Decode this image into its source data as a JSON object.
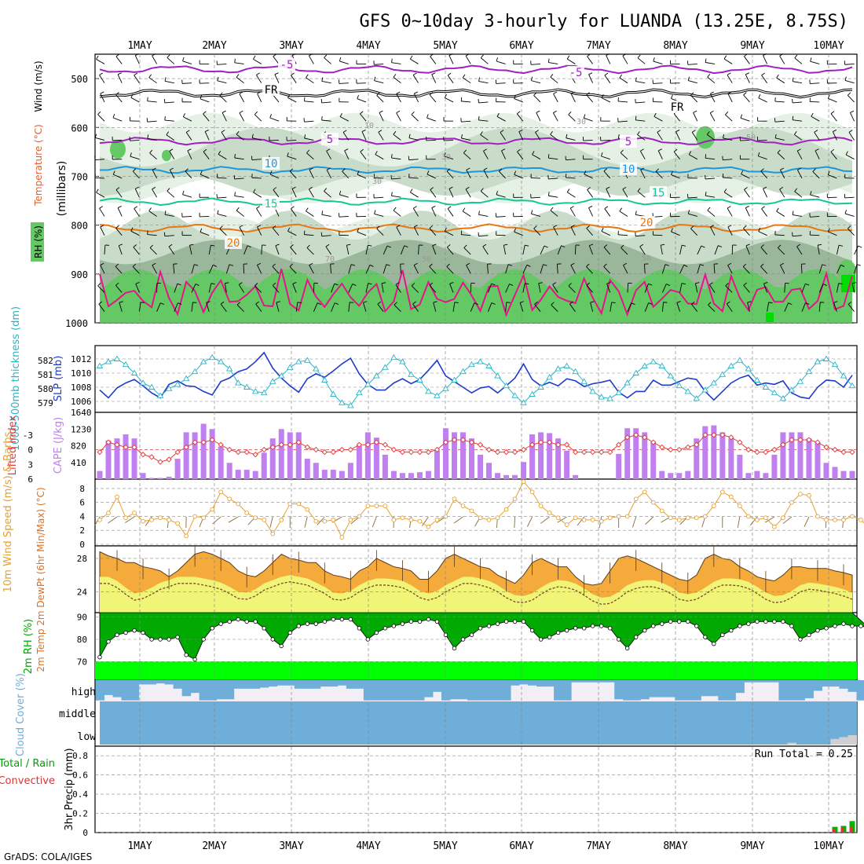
{
  "title": "GFS 0~10day 3-hourly for LUANDA (13.25E, 8.75S)",
  "footer": "GrADS: COLA/IGES",
  "days": [
    "1MAY",
    "2MAY",
    "3MAY",
    "4MAY",
    "5MAY",
    "6MAY",
    "7MAY",
    "8MAY",
    "9MAY",
    "10MAY"
  ],
  "colors": {
    "rh_light": "#e6f1e6",
    "rh_mid": "#c9dcc9",
    "rh_dark": "#9bb79b",
    "rh_green": "#64c864",
    "rh_bright": "#00dc00",
    "t_neg5": "#a020c0",
    "t_fr": "#000000",
    "t_10": "#1e96dc",
    "t_15": "#14c896",
    "t_20": "#e67814",
    "t_25": "#e6148c",
    "slp": "#1e3cc8",
    "thick": "#2ab4c8",
    "cape": "#c080f0",
    "li": "#e03c3c",
    "wind": "#e6a032",
    "temp_fill": "#f5aa3c",
    "dew_fill": "#f0f578",
    "rh2m_dark": "#00aa00",
    "rh2m_bright": "#00ff00",
    "cloud": "#6eaed8",
    "cloud_gap": "#f2eef6",
    "precip_total": "#00b400",
    "precip_conv": "#e63232"
  },
  "chart_data": [
    {
      "panel": "upper-air",
      "type": "contour",
      "ylabel": "(millibars)",
      "yticks": [
        500,
        600,
        700,
        800,
        900,
        1000
      ],
      "ylim": [
        450,
        1000
      ],
      "legend": [
        "RH (%)",
        "Temperature (°C)",
        "Wind (m/s)"
      ],
      "isotherm_labels": [
        "-5",
        "FR",
        "5",
        "10",
        "15",
        "20"
      ],
      "rh_contour_labels": [
        "10",
        "30",
        "50",
        "70"
      ],
      "isotherms": [
        {
          "label": "-5",
          "color_key": "t_neg5",
          "base": 481,
          "amp": 6
        },
        {
          "label": "FR",
          "color_key": "t_fr",
          "base": 530,
          "amp": 6
        },
        {
          "label": "5",
          "color_key": "t_neg5",
          "base": 628,
          "amp": 6
        },
        {
          "label": "10",
          "color_key": "t_10",
          "base": 687,
          "amp": 5
        },
        {
          "label": "15",
          "color_key": "t_15",
          "base": 752,
          "amp": 5
        },
        {
          "label": "20",
          "color_key": "t_20",
          "base": 806,
          "amp": 6
        }
      ]
    },
    {
      "panel": "slp-thickness",
      "type": "line",
      "ylabel_left": "1000-500mb thickness (dm)",
      "ylabel_right": "SLP (mb)",
      "slp_ticks": [
        "1012",
        "1010",
        "1008",
        "1006"
      ],
      "thick_ticks": [
        "582",
        "581",
        "580",
        "579"
      ],
      "slp_range": [
        1005,
        1013
      ],
      "slp": [
        1007.6,
        1006.5,
        1007.9,
        1008.6,
        1009.1,
        1008.2,
        1007.2,
        1006.5,
        1008.4,
        1008.9,
        1008.2,
        1008.1,
        1007.4,
        1006.9,
        1008.8,
        1009.3,
        1010.2,
        1010.6,
        1011.6,
        1012.9,
        1010.7,
        1009.3,
        1008.2,
        1007.3,
        1009.2,
        1009.9,
        1009.4,
        1010.3,
        1011.3,
        1012.1,
        1009.9,
        1008.4,
        1007.6,
        1007.6,
        1008.6,
        1009.2,
        1008.5,
        1009.1,
        1010.4,
        1011.8,
        1009.6,
        1008.8,
        1008.0,
        1007.2,
        1007.9,
        1008.1,
        1007.2,
        1008.2,
        1009.3,
        1011.3,
        1009.1,
        1008.2,
        1008.7,
        1008.2,
        1009.2,
        1008.9,
        1008.1,
        1008.5,
        1008.7,
        1009.0,
        1007.3,
        1006.5,
        1007.4,
        1007.4,
        1009.0,
        1008.3,
        1008.3,
        1008.8,
        1009.3,
        1009.1,
        1007.4,
        1006.2,
        1007.4,
        1008.6,
        1009.3,
        1009.7,
        1008.3,
        1008.6,
        1008.4,
        1008.9,
        1007.2,
        1006.6,
        1006.4,
        1008.0,
        1009.0,
        1008.9,
        1008.0,
        1009.7
      ],
      "thickness": [
        581.6,
        581.9,
        582.1,
        581.7,
        581.1,
        580.4,
        580.1,
        579.5,
        580.0,
        580.3,
        580.7,
        581.2,
        581.9,
        582.2,
        581.9,
        581.4,
        580.4,
        580.1,
        579.8,
        579.7,
        580.5,
        580.9,
        581.5,
        581.9,
        582.0,
        581.4,
        580.6,
        579.6,
        579.0,
        578.8,
        579.7,
        580.3,
        580.9,
        581.5,
        582.2,
        581.9,
        581.0,
        580.6,
        579.8,
        579.5,
        580.0,
        580.6,
        581.2,
        581.7,
        581.9,
        581.6,
        580.9,
        580.2,
        579.5,
        579.0,
        579.6,
        580.1,
        580.8,
        581.4,
        581.6,
        581.2,
        580.5,
        579.8,
        579.4,
        579.3,
        579.7,
        580.4,
        581.1,
        581.6,
        581.9,
        581.6,
        580.9,
        580.2,
        579.8,
        579.3,
        579.9,
        580.4,
        581.0,
        581.6,
        582.0,
        581.4,
        580.6,
        580.1,
        579.7,
        579.3,
        579.9,
        580.5,
        581.2,
        581.9,
        582.1,
        581.7,
        580.9,
        580.2
      ]
    },
    {
      "panel": "cape-li",
      "type": "bar+line",
      "ylabel_left": "Lifted Index",
      "ylabel_right": "CAPE (J/kg)",
      "cape_ticks": [
        "1640",
        "1230",
        "820",
        "410"
      ],
      "li_ticks": [
        "-3",
        "0",
        "3",
        "6"
      ],
      "cape_max": 1640,
      "li_range": [
        -6,
        6
      ],
      "cape": [
        200,
        950,
        1000,
        1100,
        1000,
        150,
        30,
        30,
        60,
        500,
        1150,
        1150,
        1360,
        1230,
        800,
        400,
        230,
        230,
        200,
        650,
        1000,
        1230,
        1150,
        1150,
        500,
        400,
        230,
        230,
        200,
        400,
        820,
        1150,
        1020,
        600,
        200,
        150,
        150,
        170,
        200,
        700,
        1250,
        1150,
        1150,
        1000,
        600,
        400,
        150,
        100,
        100,
        420,
        1100,
        1150,
        1130,
        1000,
        700,
        100,
        0,
        0,
        0,
        0,
        620,
        1250,
        1250,
        1150,
        900,
        200,
        150,
        150,
        200,
        1000,
        1300,
        1320,
        1150,
        1000,
        600,
        150,
        200,
        150,
        600,
        1150,
        1150,
        1150,
        1000,
        900,
        400,
        300,
        200,
        200
      ],
      "lifted_index": [
        0.5,
        -1.5,
        -1,
        -0.5,
        -0.5,
        1,
        1.5,
        2.5,
        2,
        0.5,
        -0.5,
        -1.5,
        -1.5,
        -2,
        -1,
        0,
        0.5,
        0.5,
        1,
        0,
        -0.5,
        -1,
        -1,
        -1.5,
        -0.5,
        0,
        0.5,
        0.5,
        0,
        0,
        -1,
        -1,
        -1.5,
        -1,
        0,
        0.5,
        0.5,
        0.5,
        0.5,
        0,
        -1.5,
        -2,
        -2,
        -1.5,
        -1,
        0,
        0.5,
        0.5,
        0.5,
        0,
        -1,
        -1.5,
        -1.5,
        -1,
        -1,
        0.5,
        0.5,
        0.5,
        0.5,
        0.5,
        -1,
        -2.5,
        -3,
        -2.5,
        -1.5,
        -0.5,
        0,
        0,
        -0.5,
        -1,
        -3,
        -3,
        -3,
        -2.5,
        -1.5,
        0,
        0.5,
        0.5,
        0,
        -1,
        -2,
        -2,
        -2,
        -1.5,
        -0.5,
        0,
        0.5,
        0.5
      ]
    },
    {
      "panel": "wind10m",
      "type": "line",
      "ylabel": "10m Wind Speed (m/s) & Barbs",
      "yticks": [
        "8",
        "6",
        "4",
        "2",
        "0"
      ],
      "ylim": [
        0,
        9
      ],
      "speed": [
        3.5,
        4.5,
        6.8,
        3.8,
        4.5,
        3.3,
        3.5,
        3.8,
        3.5,
        3.0,
        1.2,
        4.0,
        3.8,
        5.0,
        7.5,
        6.5,
        5.8,
        4.5,
        3.8,
        3.5,
        1.5,
        3.5,
        5.8,
        5.8,
        5.0,
        3.3,
        3.3,
        3.5,
        1.0,
        3.5,
        4.0,
        5.5,
        5.5,
        5.5,
        3.5,
        3.8,
        3.5,
        3.3,
        2.5,
        3.5,
        4.0,
        6.5,
        5.5,
        4.8,
        3.8,
        3.5,
        3.8,
        5.0,
        6.5,
        9.0,
        7.5,
        5.5,
        4.5,
        3.8,
        2.8,
        3.8,
        3.5,
        3.5,
        3.3,
        3.8,
        4.0,
        4.0,
        6.5,
        7.5,
        6.0,
        4.8,
        3.8,
        3.5,
        3.8,
        3.8,
        4.0,
        5.5,
        7.5,
        6.8,
        5.5,
        4.0,
        3.5,
        3.8,
        2.5,
        3.8,
        6.0,
        7.2,
        7.0,
        4.0,
        3.5,
        3.5,
        3.5,
        4.0,
        3.5,
        2.3,
        2.5,
        2.0
      ]
    },
    {
      "panel": "temp-dewpt",
      "type": "area",
      "ylabel": "2m Temp 2m DewPt (6hr Min/Max) (°C)",
      "yticks": [
        "28",
        "24"
      ],
      "ylim": [
        21.5,
        29.5
      ],
      "temp": [
        28.8,
        28.3,
        28.0,
        27.5,
        27.5,
        27.0,
        26.8,
        26.5,
        25.8,
        26.5,
        27.5,
        28.5,
        28.8,
        28.5,
        28.0,
        27.5,
        26.5,
        26.0,
        25.8,
        26.5,
        27.5,
        28.5,
        28.0,
        27.8,
        27.5,
        27.5,
        26.5,
        26.0,
        25.8,
        25.5,
        26.5,
        27.0,
        28.0,
        27.5,
        27.0,
        26.8,
        26.5,
        25.5,
        25.5,
        26.5,
        28.0,
        28.5,
        28.0,
        27.5,
        27.0,
        26.8,
        26.0,
        25.5,
        25.0,
        26.0,
        27.5,
        28.0,
        27.5,
        27.0,
        27.0,
        25.8,
        25.0,
        24.8,
        25.0,
        26.5,
        28.0,
        28.3,
        28.0,
        27.5,
        27.0,
        26.5,
        26.0,
        25.5,
        25.3,
        26.0,
        28.0,
        28.5,
        28.0,
        27.8,
        27.0,
        26.5,
        25.8,
        25.5,
        25.3,
        26.0,
        27.0,
        27.0,
        26.8,
        26.8,
        26.8,
        26.5,
        26.3,
        26.0
      ],
      "dewpoint": [
        25.0,
        25.0,
        24.5,
        23.7,
        23.0,
        23.2,
        23.7,
        24.3,
        24.6,
        25.0,
        25.0,
        25.0,
        24.8,
        24.6,
        24.3,
        23.8,
        23.2,
        23.1,
        23.5,
        24.2,
        24.6,
        25.0,
        25.2,
        25.0,
        24.8,
        24.3,
        23.8,
        23.1,
        23.0,
        23.3,
        24.0,
        24.5,
        24.8,
        24.8,
        24.7,
        24.5,
        24.0,
        23.3,
        23.0,
        23.3,
        24.0,
        24.5,
        25.0,
        25.0,
        24.8,
        24.5,
        24.0,
        23.3,
        22.8,
        22.7,
        23.0,
        23.7,
        24.3,
        24.6,
        24.5,
        24.2,
        23.6,
        22.9,
        22.5,
        22.6,
        23.2,
        24.0,
        24.4,
        24.6,
        24.6,
        24.3,
        23.8,
        23.1,
        22.9,
        23.1,
        23.7,
        24.4,
        24.8,
        24.8,
        24.7,
        24.4,
        23.8,
        23.1,
        22.7,
        22.8,
        23.3,
        24.0,
        24.3,
        24.2,
        24.0,
        23.8,
        23.5,
        23.1
      ]
    },
    {
      "panel": "rh2m",
      "type": "area",
      "ylabel": "2m RH (%)",
      "yticks": [
        "90",
        "80",
        "70"
      ],
      "ylim": [
        62,
        92
      ],
      "rh": [
        72,
        79,
        82,
        83,
        84,
        83,
        80,
        80,
        80,
        81,
        73,
        71,
        80,
        85,
        87,
        88,
        89,
        88,
        88,
        85,
        80,
        77,
        83,
        86,
        87,
        87,
        88,
        89,
        89,
        89,
        85,
        80,
        83,
        85,
        86,
        87,
        88,
        88,
        89,
        88,
        82,
        76,
        80,
        82,
        85,
        86,
        87,
        88,
        88,
        88,
        84,
        80,
        81,
        83,
        84,
        85,
        85,
        86,
        86,
        85,
        80,
        76,
        81,
        84,
        86,
        87,
        88,
        88,
        88,
        86,
        81,
        78,
        82,
        84,
        86,
        87,
        88,
        88,
        88,
        88,
        86,
        80,
        82,
        84,
        85,
        86,
        87,
        86,
        86,
        85
      ]
    },
    {
      "panel": "cloud-cover",
      "type": "area",
      "ylabel": "Cloud Cover (%)",
      "rows": [
        "high",
        "middle",
        "low"
      ],
      "high": [
        95,
        70,
        80,
        95,
        95,
        20,
        20,
        15,
        20,
        40,
        75,
        60,
        95,
        95,
        90,
        90,
        40,
        40,
        40,
        35,
        30,
        25,
        25,
        40,
        40,
        40,
        30,
        30,
        25,
        40,
        40,
        95,
        95,
        95,
        95,
        95,
        95,
        95,
        80,
        55,
        95,
        90,
        90,
        95,
        95,
        95,
        95,
        95,
        25,
        20,
        25,
        30,
        30,
        95,
        95,
        10,
        10,
        10,
        10,
        10,
        90,
        95,
        95,
        90,
        80,
        80,
        80,
        95,
        95,
        95,
        75,
        75,
        95,
        95,
        60,
        10,
        10,
        10,
        10,
        95,
        95,
        95,
        85,
        50,
        30,
        30,
        40,
        55,
        95,
        95
      ],
      "low": [
        0,
        0,
        0,
        0,
        0,
        0,
        0,
        0,
        0,
        0,
        0,
        0,
        0,
        0,
        0,
        0,
        0,
        0,
        0,
        0,
        0,
        0,
        0,
        0,
        0,
        0,
        0,
        0,
        0,
        0,
        0,
        0,
        0,
        0,
        0,
        0,
        0,
        0,
        0,
        0,
        0,
        0,
        0,
        0,
        0,
        0,
        0,
        0,
        0,
        0,
        0,
        0,
        0,
        0,
        0,
        0,
        0,
        0,
        0,
        0,
        0,
        0,
        0,
        0,
        0,
        0,
        0,
        0,
        0,
        0,
        0,
        0,
        0,
        0,
        0,
        0,
        0,
        0,
        0,
        0,
        10,
        0,
        0,
        0,
        0,
        30,
        40,
        50
      ]
    },
    {
      "panel": "precip",
      "type": "bar",
      "ylabel": "3hr Precip (mm)",
      "legend_left": [
        "Total / Rain",
        "Convective"
      ],
      "yticks": [
        "0.8",
        "0.6",
        "0.4",
        "0.2",
        "0"
      ],
      "ylim": [
        0,
        0.9
      ],
      "run_total_label": "Run Total = 0.25",
      "bars": [
        {
          "index": 85,
          "total": 0.06,
          "convective": 0.04
        },
        {
          "index": 86,
          "total": 0.07,
          "convective": 0.05
        },
        {
          "index": 87,
          "total": 0.12,
          "convective": 0.06
        }
      ]
    }
  ]
}
